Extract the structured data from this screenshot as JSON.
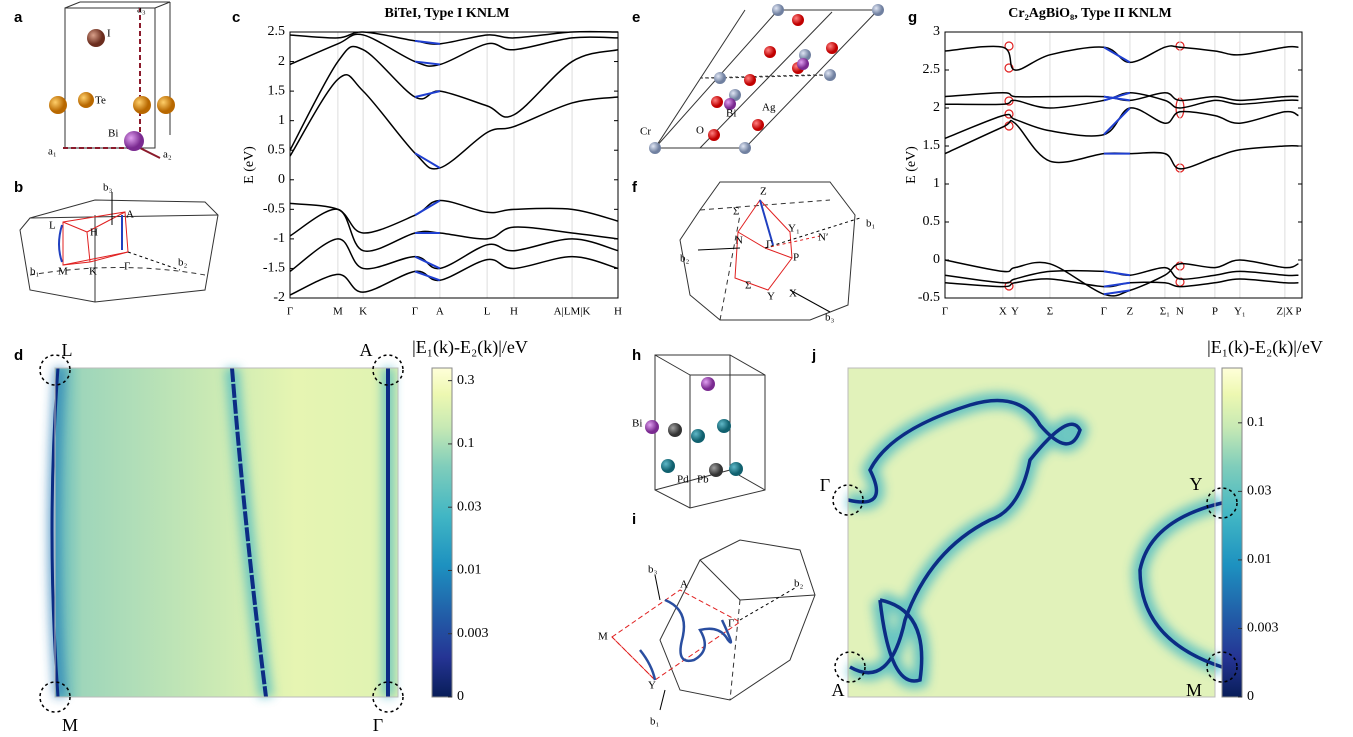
{
  "panel_labels": [
    "a",
    "b",
    "c",
    "d",
    "e",
    "f",
    "g",
    "h",
    "i",
    "j"
  ],
  "diagrams": {
    "a": [
      "a₃",
      "I",
      "Te",
      "Bi",
      "a₁",
      "a₂"
    ],
    "b": [
      "b₃",
      "A",
      "L",
      "H",
      "b₂",
      "b₁",
      "M",
      "K",
      "Γ"
    ],
    "e": [
      "Cr",
      "O",
      "Bi",
      "Ag"
    ],
    "f": [
      "Z",
      "Σ",
      "Y₁",
      "b₁",
      "N",
      "Γ",
      "N′",
      "b₂",
      "P",
      "Σ",
      "Y",
      "X",
      "b₃"
    ],
    "h": [
      "Bi",
      "Pd",
      "Pb"
    ],
    "i": [
      "b₃",
      "A",
      "b₂",
      "M",
      "Γ",
      "Y",
      "b₁"
    ]
  },
  "chart_data": [
    {
      "type": "bands",
      "title": "BiTeI, Type I KNLM",
      "y_label": "E (eV)",
      "categories": [
        "Γ",
        "M",
        "K",
        "Γ",
        "A",
        "L",
        "H",
        "A|LM|K",
        "H"
      ],
      "ylim": [
        -2,
        2.5
      ],
      "yticks": [
        -2,
        -1.5,
        -1,
        -0.5,
        0,
        0.5,
        1,
        1.5,
        2,
        2.5
      ],
      "highlight_segment": [
        3,
        4
      ],
      "highlight_color": "#1f3fd0",
      "series": [
        {
          "color": "#000000",
          "values": [
            -1.95,
            -1.6,
            -1.9,
            -1.55,
            -1.7,
            -1.35,
            -1.5,
            -1.3,
            -1.5
          ]
        },
        {
          "color": "#000000",
          "values": [
            -1.55,
            -1.0,
            -1.5,
            -1.3,
            -1.5,
            -1.1,
            -1.2,
            -1.0,
            -1.2
          ]
        },
        {
          "color": "#000000",
          "values": [
            -0.95,
            -0.5,
            -1.2,
            -0.9,
            -0.9,
            -1.0,
            -0.8,
            -0.9,
            -1.0
          ]
        },
        {
          "color": "#000000",
          "values": [
            -0.4,
            -0.5,
            -0.9,
            -0.6,
            -0.35,
            -0.55,
            -0.5,
            -0.5,
            -0.7
          ]
        },
        {
          "color": "#000000",
          "values": [
            0.4,
            1.7,
            1.5,
            0.45,
            0.2,
            0.8,
            0.9,
            1.3,
            1.4
          ]
        },
        {
          "color": "#000000",
          "values": [
            0.5,
            2.0,
            2.2,
            1.4,
            1.5,
            1.25,
            1.1,
            2.0,
            2.2
          ]
        },
        {
          "color": "#000000",
          "values": [
            1.95,
            2.3,
            2.45,
            2.0,
            1.95,
            2.3,
            2.2,
            2.4,
            2.4
          ]
        },
        {
          "color": "#000000",
          "values": [
            2.45,
            2.4,
            2.5,
            2.35,
            2.3,
            2.45,
            2.4,
            2.5,
            2.5
          ]
        }
      ]
    },
    {
      "type": "bands",
      "title": "Cr₂AgBiO₈, Type II KNLM",
      "y_label": "E (eV)",
      "categories": [
        "Γ",
        "X",
        "Y",
        "Σ",
        "Γ",
        "Z",
        "Σ₁",
        "N",
        "P",
        "Y₁",
        "Z|X",
        "P"
      ],
      "ylim": [
        -0.5,
        3
      ],
      "yticks": [
        -0.5,
        0,
        0.5,
        1,
        1.5,
        2,
        2.5,
        3
      ],
      "highlight_segment": [
        4,
        5
      ],
      "highlight_color": "#1f3fd0",
      "series": [
        {
          "color": "#000000",
          "values": [
            -0.3,
            -0.35,
            -0.3,
            -0.25,
            -0.35,
            -0.3,
            -0.3,
            -0.35,
            -0.3,
            -0.25,
            -0.3,
            -0.3
          ]
        },
        {
          "color": "#000000",
          "values": [
            -0.2,
            -0.3,
            -0.25,
            -0.15,
            -0.15,
            -0.2,
            -0.1,
            -0.25,
            -0.2,
            -0.15,
            -0.2,
            -0.2
          ]
        },
        {
          "color": "#000000",
          "values": [
            0.0,
            -0.15,
            -0.1,
            -0.05,
            -0.45,
            -0.4,
            -0.2,
            -0.05,
            -0.1,
            0.0,
            -0.1,
            -0.05
          ]
        },
        {
          "color": "#000000",
          "values": [
            1.4,
            1.75,
            1.8,
            1.3,
            1.4,
            1.4,
            1.4,
            1.2,
            1.35,
            1.45,
            1.5,
            1.5
          ]
        },
        {
          "color": "#000000",
          "values": [
            1.6,
            1.9,
            1.85,
            1.7,
            1.65,
            2.0,
            1.8,
            1.95,
            1.9,
            1.8,
            1.95,
            1.9
          ]
        },
        {
          "color": "#000000",
          "values": [
            2.05,
            2.05,
            2.1,
            2.0,
            2.1,
            2.2,
            2.1,
            2.0,
            2.1,
            2.05,
            2.1,
            2.1
          ]
        },
        {
          "color": "#000000",
          "values": [
            2.15,
            2.2,
            2.15,
            2.15,
            2.15,
            2.1,
            2.2,
            2.1,
            2.15,
            2.1,
            2.15,
            2.15
          ]
        },
        {
          "color": "#000000",
          "values": [
            2.75,
            2.8,
            2.5,
            2.7,
            2.8,
            2.6,
            2.8,
            2.8,
            2.75,
            2.7,
            2.8,
            2.8
          ]
        }
      ]
    },
    {
      "type": "heatmap",
      "colorbar_title": "|E₁(k)-E₂(k)|/eV",
      "colorbar_ticks": [
        0.3,
        0.1,
        0.03,
        0.01,
        0.003,
        0
      ],
      "corner_labels": [
        "L",
        "A",
        "M",
        "Γ"
      ]
    },
    {
      "type": "heatmap",
      "colorbar_title": "|E₁(k)-E₂(k)|/eV",
      "colorbar_ticks": [
        0.1,
        0.03,
        0.01,
        0.003,
        0
      ],
      "corner_labels": [
        "Γ",
        "Y",
        "A",
        "M"
      ]
    }
  ]
}
